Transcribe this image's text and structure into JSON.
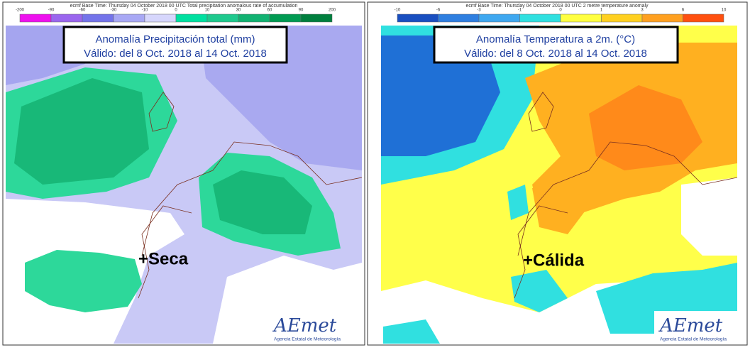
{
  "panels": [
    {
      "header": "ecmf  Base Time: Thursday 04 October 2018 00 UTC  Total precipitation anomalous rate of accumulation",
      "scale": [
        "-200",
        "-90",
        "-60",
        "-30",
        "-10",
        "0",
        "10",
        "30",
        "60",
        "90",
        "200"
      ],
      "title": [
        "Anomalía Precipitación total (mm)",
        "Válido: del 8 Oct. 2018 al 14 Oct. 2018"
      ],
      "label": "+Seca",
      "logo": "AEmet",
      "agency": "Agencia Estatal de Meteorología"
    },
    {
      "header": "ecmf  Base Time: Thursday 04 October 2018 00 UTC  2 metre temperature anomaly",
      "scale": [
        "-10",
        "-6",
        "-3",
        "-1",
        "0",
        "1",
        "3",
        "6",
        "10"
      ],
      "title": [
        "Anomalía Temperatura a 2m. (°C)",
        "Válido: del 8 Oct. 2018 al 14 Oct. 2018"
      ],
      "label": "+Cálida",
      "logo": "AEmet",
      "agency": "Agencia Estatal de Meteorología"
    }
  ]
}
